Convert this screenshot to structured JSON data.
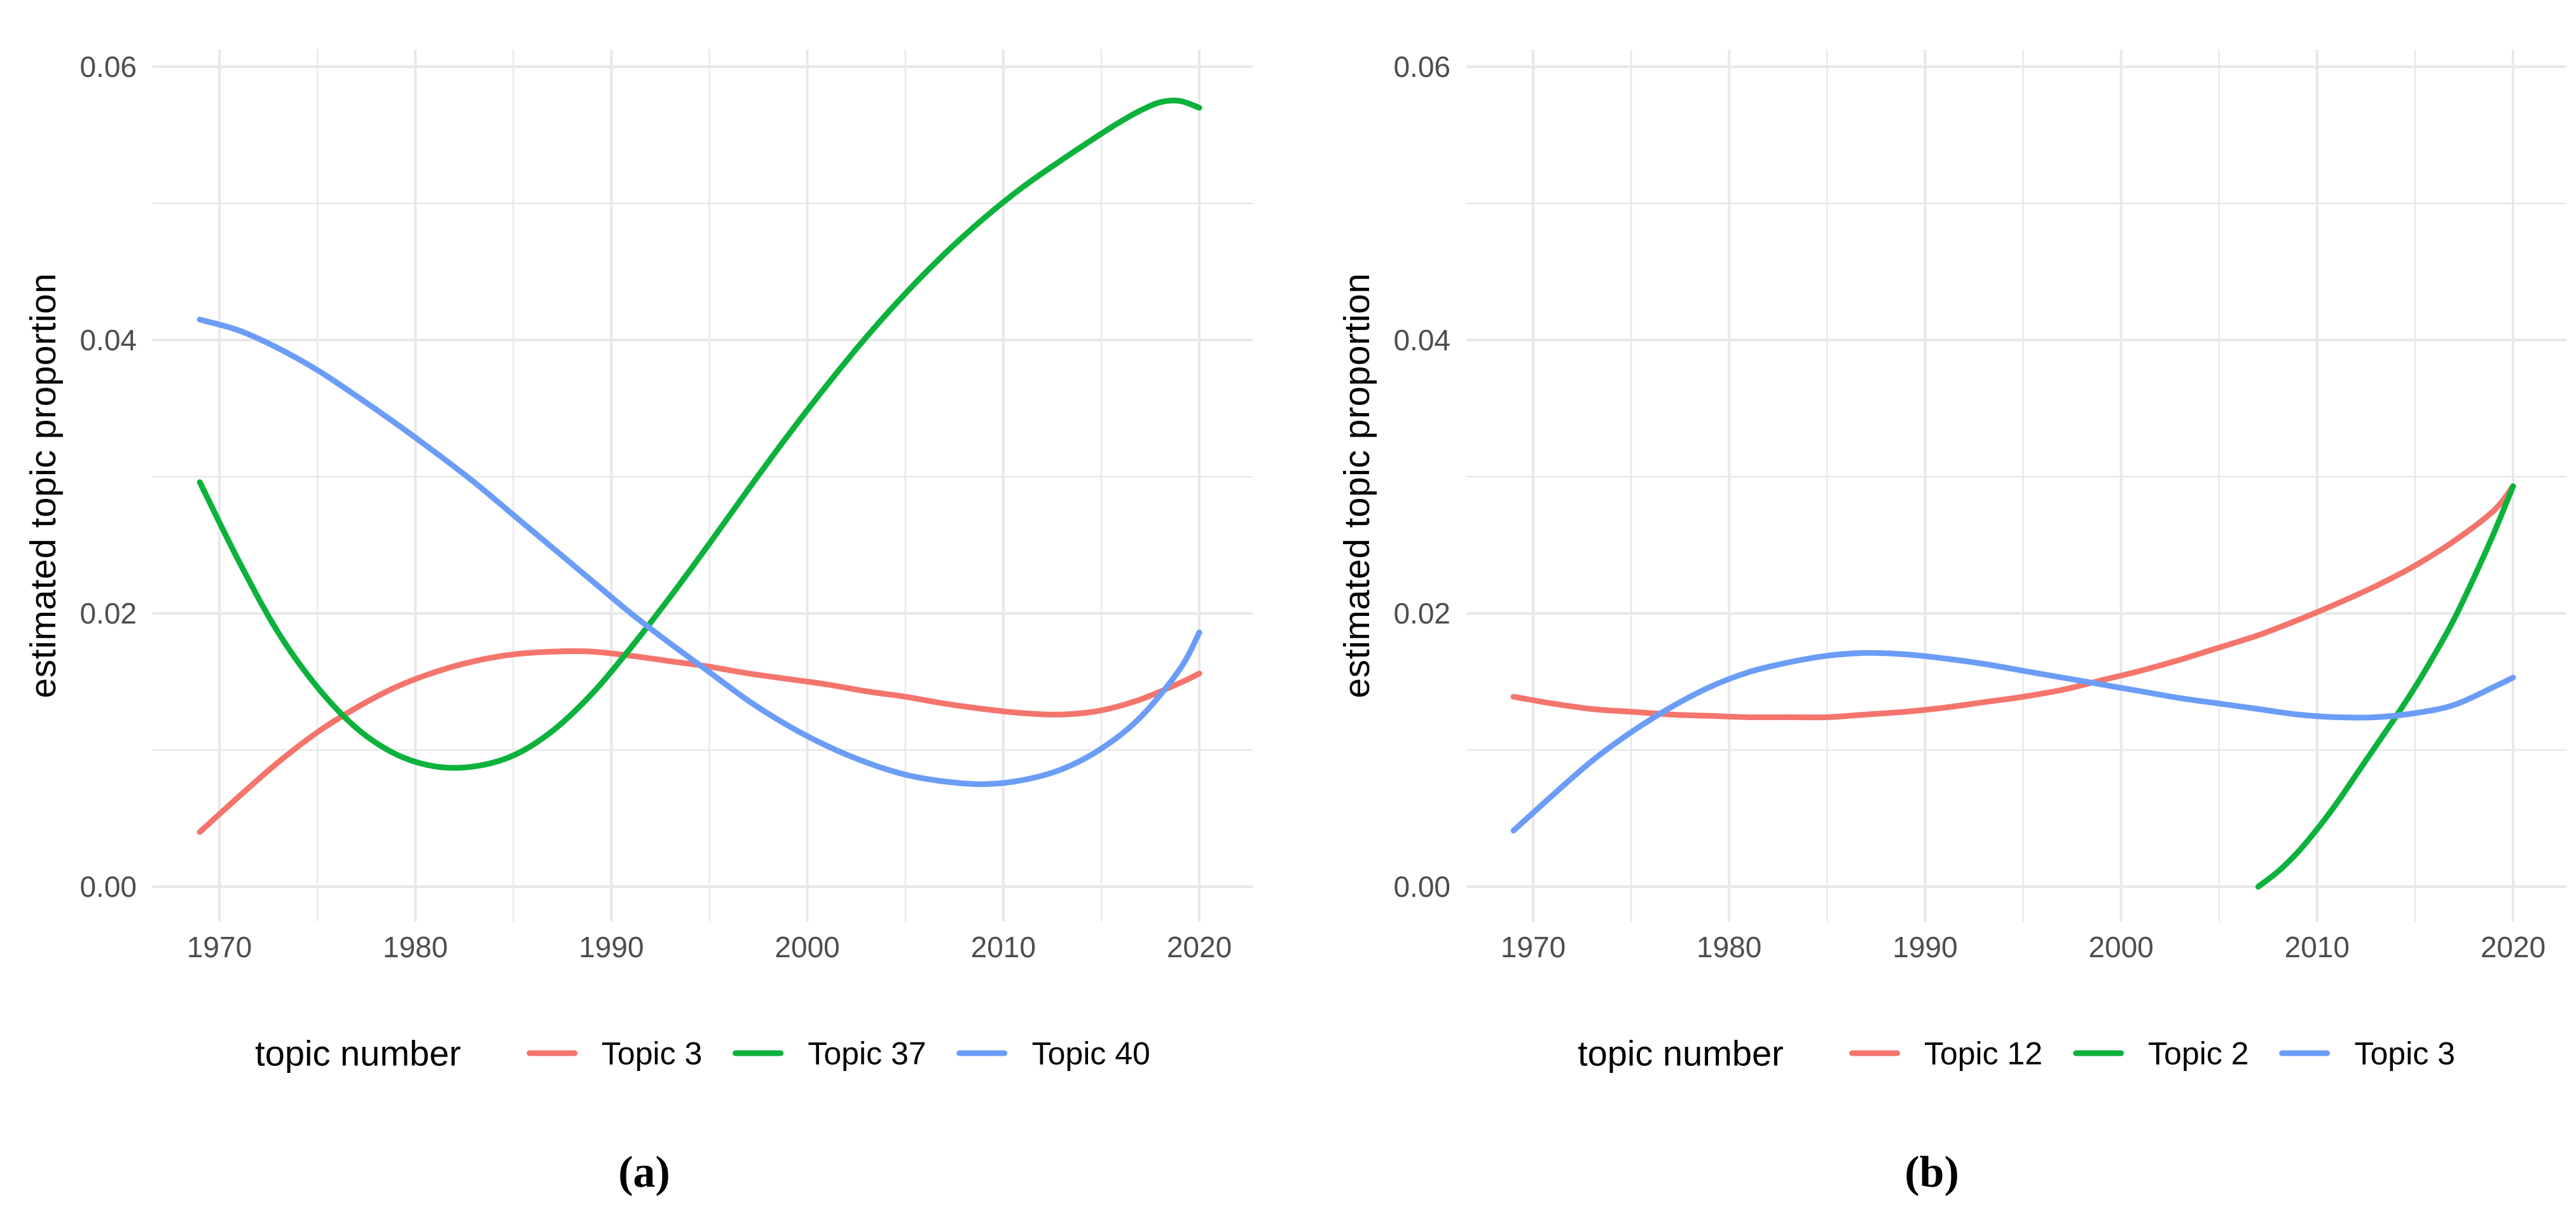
{
  "figure": {
    "background": "#FFFFFF",
    "grid_color": "#E8E8E8",
    "tick_label_color": "#4D4D4D",
    "text_color": "#000000",
    "palette": {
      "red": "#F4756C",
      "green": "#0CB23B",
      "blue": "#6B9DF6"
    }
  },
  "chart_data": [
    {
      "type": "line",
      "panel": "a",
      "caption": "(a)",
      "title": "",
      "xlabel": "",
      "ylabel": "estimated topic proportion",
      "x_ticks": [
        1970,
        1980,
        1990,
        2000,
        2010,
        2020
      ],
      "x_minor": [
        1975,
        1985,
        1995,
        2005,
        2015
      ],
      "y_ticks": [
        0.0,
        0.02,
        0.04,
        0.06
      ],
      "y_tick_labels": [
        "0.00",
        "0.02",
        "0.04",
        "0.06"
      ],
      "y_minor": [
        0.01,
        0.03,
        0.05
      ],
      "xlim": [
        1966.6,
        2022.7
      ],
      "ylim": [
        -0.0026,
        0.0613
      ],
      "grid": true,
      "legend_title": "topic number",
      "legend_position": "bottom",
      "series": [
        {
          "name": "Topic 3",
          "color_key": "red",
          "points": [
            [
              1969,
              0.004
            ],
            [
              1971,
              0.0066
            ],
            [
              1973,
              0.0091
            ],
            [
              1975,
              0.0113
            ],
            [
              1977,
              0.0131
            ],
            [
              1979,
              0.0146
            ],
            [
              1981,
              0.0157
            ],
            [
              1983,
              0.0165
            ],
            [
              1985,
              0.017
            ],
            [
              1987,
              0.0172
            ],
            [
              1989,
              0.0172
            ],
            [
              1991,
              0.0169
            ],
            [
              1993,
              0.0165
            ],
            [
              1995,
              0.0161
            ],
            [
              1997,
              0.0156
            ],
            [
              1999,
              0.0152
            ],
            [
              2001,
              0.0148
            ],
            [
              2003,
              0.0143
            ],
            [
              2005,
              0.0139
            ],
            [
              2007,
              0.0134
            ],
            [
              2009,
              0.013
            ],
            [
              2011,
              0.0127
            ],
            [
              2013,
              0.0126
            ],
            [
              2015,
              0.0129
            ],
            [
              2017,
              0.0137
            ],
            [
              2019,
              0.0149
            ],
            [
              2020,
              0.0156
            ]
          ]
        },
        {
          "name": "Topic 37",
          "color_key": "green",
          "points": [
            [
              1969,
              0.0296
            ],
            [
              1971,
              0.0238
            ],
            [
              1973,
              0.0186
            ],
            [
              1975,
              0.0146
            ],
            [
              1977,
              0.0116
            ],
            [
              1979,
              0.0097
            ],
            [
              1981,
              0.0088
            ],
            [
              1983,
              0.0088
            ],
            [
              1985,
              0.0096
            ],
            [
              1987,
              0.0114
            ],
            [
              1989,
              0.0141
            ],
            [
              1991,
              0.0175
            ],
            [
              1993,
              0.0212
            ],
            [
              1995,
              0.0251
            ],
            [
              1997,
              0.0291
            ],
            [
              1999,
              0.033
            ],
            [
              2001,
              0.0367
            ],
            [
              2003,
              0.0402
            ],
            [
              2005,
              0.0434
            ],
            [
              2007,
              0.0463
            ],
            [
              2009,
              0.0489
            ],
            [
              2011,
              0.0512
            ],
            [
              2013,
              0.0532
            ],
            [
              2015,
              0.0551
            ],
            [
              2016,
              0.056
            ],
            [
              2017,
              0.0568
            ],
            [
              2018,
              0.0574
            ],
            [
              2019,
              0.0575
            ],
            [
              2020,
              0.057
            ]
          ]
        },
        {
          "name": "Topic 40",
          "color_key": "blue",
          "points": [
            [
              1969,
              0.0415
            ],
            [
              1971,
              0.0407
            ],
            [
              1973,
              0.0394
            ],
            [
              1975,
              0.0378
            ],
            [
              1977,
              0.0359
            ],
            [
              1979,
              0.0339
            ],
            [
              1981,
              0.0318
            ],
            [
              1983,
              0.0296
            ],
            [
              1985,
              0.0272
            ],
            [
              1987,
              0.0248
            ],
            [
              1989,
              0.0224
            ],
            [
              1991,
              0.02
            ],
            [
              1993,
              0.0178
            ],
            [
              1995,
              0.0157
            ],
            [
              1997,
              0.0136
            ],
            [
              1999,
              0.0118
            ],
            [
              2001,
              0.0103
            ],
            [
              2003,
              0.0091
            ],
            [
              2005,
              0.0082
            ],
            [
              2007,
              0.0077
            ],
            [
              2009,
              0.0075
            ],
            [
              2011,
              0.0078
            ],
            [
              2013,
              0.0086
            ],
            [
              2015,
              0.0101
            ],
            [
              2017,
              0.0124
            ],
            [
              2019,
              0.0159
            ],
            [
              2020,
              0.0186
            ]
          ]
        }
      ]
    },
    {
      "type": "line",
      "panel": "b",
      "caption": "(b)",
      "title": "",
      "xlabel": "",
      "ylabel": "estimated topic proportion",
      "x_ticks": [
        1970,
        1980,
        1990,
        2000,
        2010,
        2020
      ],
      "x_minor": [
        1975,
        1985,
        1995,
        2005,
        2015
      ],
      "y_ticks": [
        0.0,
        0.02,
        0.04,
        0.06
      ],
      "y_tick_labels": [
        "0.00",
        "0.02",
        "0.04",
        "0.06"
      ],
      "y_minor": [
        0.01,
        0.03,
        0.05
      ],
      "xlim": [
        1966.6,
        2022.7
      ],
      "ylim": [
        -0.0026,
        0.0613
      ],
      "grid": true,
      "legend_title": "topic number",
      "legend_position": "bottom",
      "series": [
        {
          "name": "Topic 12",
          "color_key": "red",
          "points": [
            [
              1969,
              0.0139
            ],
            [
              1971,
              0.0134
            ],
            [
              1973,
              0.013
            ],
            [
              1975,
              0.0128
            ],
            [
              1977,
              0.0126
            ],
            [
              1979,
              0.0125
            ],
            [
              1981,
              0.0124
            ],
            [
              1983,
              0.0124
            ],
            [
              1985,
              0.0124
            ],
            [
              1987,
              0.0126
            ],
            [
              1989,
              0.0128
            ],
            [
              1991,
              0.0131
            ],
            [
              1993,
              0.0135
            ],
            [
              1995,
              0.0139
            ],
            [
              1997,
              0.0144
            ],
            [
              1999,
              0.0151
            ],
            [
              2001,
              0.0158
            ],
            [
              2003,
              0.0166
            ],
            [
              2005,
              0.0175
            ],
            [
              2007,
              0.0184
            ],
            [
              2009,
              0.0195
            ],
            [
              2011,
              0.0207
            ],
            [
              2013,
              0.022
            ],
            [
              2015,
              0.0235
            ],
            [
              2017,
              0.0253
            ],
            [
              2019,
              0.0275
            ],
            [
              2020,
              0.0293
            ]
          ]
        },
        {
          "name": "Topic 2",
          "color_key": "green",
          "points": [
            [
              2007,
              0.0
            ],
            [
              2008,
              0.0011
            ],
            [
              2009,
              0.0025
            ],
            [
              2010,
              0.0042
            ],
            [
              2011,
              0.0061
            ],
            [
              2012,
              0.0082
            ],
            [
              2013,
              0.0103
            ],
            [
              2014,
              0.0124
            ],
            [
              2015,
              0.0146
            ],
            [
              2016,
              0.017
            ],
            [
              2017,
              0.0196
            ],
            [
              2018,
              0.0226
            ],
            [
              2019,
              0.0258
            ],
            [
              2020,
              0.0293
            ]
          ]
        },
        {
          "name": "Topic 3",
          "color_key": "blue",
          "points": [
            [
              1969,
              0.0041
            ],
            [
              1971,
              0.0067
            ],
            [
              1973,
              0.0092
            ],
            [
              1975,
              0.0113
            ],
            [
              1977,
              0.0131
            ],
            [
              1979,
              0.0146
            ],
            [
              1981,
              0.0157
            ],
            [
              1983,
              0.0164
            ],
            [
              1985,
              0.0169
            ],
            [
              1987,
              0.0171
            ],
            [
              1989,
              0.017
            ],
            [
              1991,
              0.0167
            ],
            [
              1993,
              0.0163
            ],
            [
              1995,
              0.0158
            ],
            [
              1997,
              0.0153
            ],
            [
              1999,
              0.0148
            ],
            [
              2001,
              0.0143
            ],
            [
              2003,
              0.0138
            ],
            [
              2005,
              0.0134
            ],
            [
              2007,
              0.013
            ],
            [
              2009,
              0.0126
            ],
            [
              2011,
              0.0124
            ],
            [
              2013,
              0.0124
            ],
            [
              2015,
              0.0127
            ],
            [
              2017,
              0.0133
            ],
            [
              2019,
              0.0146
            ],
            [
              2020,
              0.0153
            ]
          ]
        }
      ]
    }
  ]
}
